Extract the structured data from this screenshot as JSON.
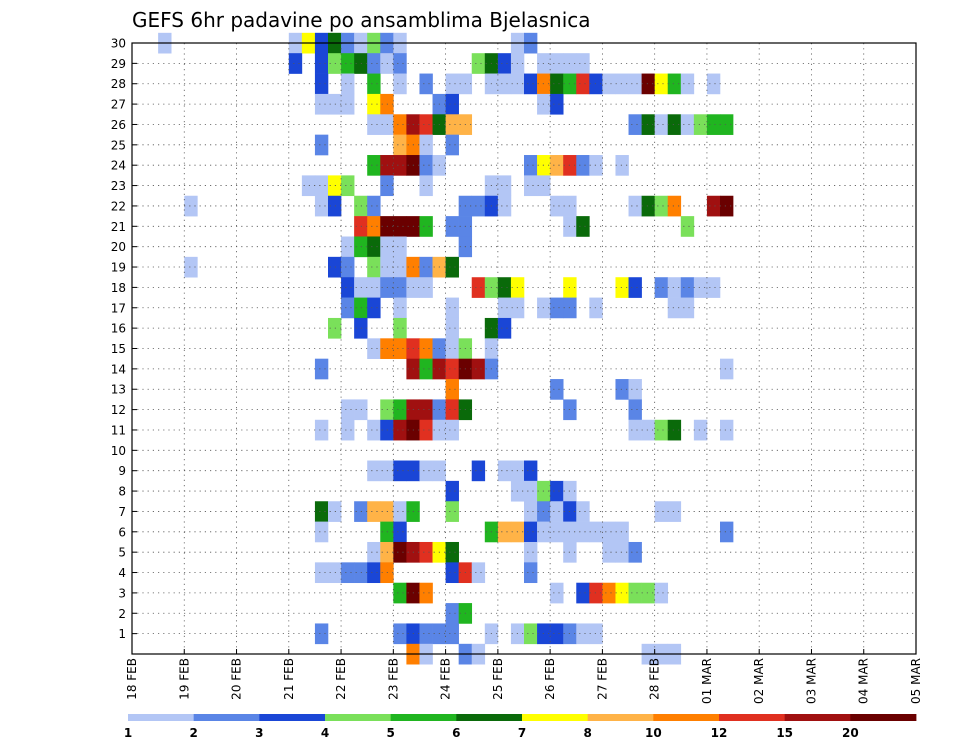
{
  "chart_data": {
    "type": "heatmap",
    "title": "GEFS 6hr padavine po ansamblima Bjelasnica",
    "y_ticks": [
      "1",
      "2",
      "3",
      "4",
      "5",
      "6",
      "7",
      "8",
      "9",
      "10",
      "11",
      "12",
      "13",
      "14",
      "15",
      "16",
      "17",
      "18",
      "19",
      "20",
      "21",
      "22",
      "23",
      "24",
      "25",
      "26",
      "27",
      "28",
      "29",
      "30"
    ],
    "x_ticks": [
      "18 FEB",
      "19 FEB",
      "20 FEB",
      "21 FEB",
      "22 FEB",
      "23 FEB",
      "24 FEB",
      "25 FEB",
      "26 FEB",
      "27 FEB",
      "28 FEB",
      "01 MAR",
      "02 MAR",
      "03 MAR",
      "04 MAR",
      "05 MAR"
    ],
    "ylim": [
      0,
      30
    ],
    "grid": true,
    "legend": {
      "placement": "bottom",
      "labels": [
        "1",
        "2",
        "3",
        "4",
        "5",
        "6",
        "7",
        "8",
        "10",
        "12",
        "15",
        "20"
      ],
      "colors": [
        "#b3c6f5",
        "#5a85e6",
        "#1a46d6",
        "#7ae05a",
        "#20b520",
        "#0a6a0a",
        "#ffff00",
        "#ffb347",
        "#ff7f00",
        "#e03020",
        "#a01010",
        "#6a0000"
      ]
    },
    "cells": [
      [
        30,
        2,
        1
      ],
      [
        30,
        12,
        1
      ],
      [
        30,
        13,
        7
      ],
      [
        30,
        14,
        3
      ],
      [
        30,
        15,
        6
      ],
      [
        30,
        16,
        2
      ],
      [
        30,
        17,
        1
      ],
      [
        30,
        18,
        4
      ],
      [
        30,
        19,
        2
      ],
      [
        30,
        20,
        1
      ],
      [
        30,
        29,
        1
      ],
      [
        30,
        30,
        2
      ],
      [
        29,
        12,
        3
      ],
      [
        29,
        14,
        3
      ],
      [
        29,
        15,
        4
      ],
      [
        29,
        16,
        5
      ],
      [
        29,
        17,
        6
      ],
      [
        29,
        18,
        2
      ],
      [
        29,
        19,
        1
      ],
      [
        29,
        20,
        2
      ],
      [
        29,
        26,
        4
      ],
      [
        29,
        27,
        6
      ],
      [
        29,
        28,
        3
      ],
      [
        29,
        29,
        1
      ],
      [
        29,
        31,
        1
      ],
      [
        29,
        32,
        1
      ],
      [
        29,
        33,
        1
      ],
      [
        29,
        34,
        1
      ],
      [
        28,
        14,
        3
      ],
      [
        28,
        16,
        1
      ],
      [
        28,
        18,
        5
      ],
      [
        28,
        20,
        1
      ],
      [
        28,
        22,
        2
      ],
      [
        28,
        24,
        1
      ],
      [
        28,
        25,
        1
      ],
      [
        28,
        27,
        1
      ],
      [
        28,
        28,
        1
      ],
      [
        28,
        29,
        1
      ],
      [
        28,
        30,
        3
      ],
      [
        28,
        31,
        10
      ],
      [
        28,
        32,
        6
      ],
      [
        28,
        33,
        5
      ],
      [
        28,
        34,
        12
      ],
      [
        28,
        35,
        3
      ],
      [
        28,
        36,
        1
      ],
      [
        28,
        37,
        1
      ],
      [
        28,
        38,
        1
      ],
      [
        28,
        39,
        20
      ],
      [
        28,
        40,
        7
      ],
      [
        28,
        41,
        5
      ],
      [
        28,
        42,
        1
      ],
      [
        28,
        44,
        1
      ],
      [
        27,
        14,
        1
      ],
      [
        27,
        15,
        1
      ],
      [
        27,
        16,
        1
      ],
      [
        27,
        18,
        7
      ],
      [
        27,
        19,
        10
      ],
      [
        27,
        23,
        2
      ],
      [
        27,
        24,
        3
      ],
      [
        27,
        31,
        1
      ],
      [
        27,
        32,
        3
      ],
      [
        26,
        18,
        1
      ],
      [
        26,
        19,
        1
      ],
      [
        26,
        20,
        10
      ],
      [
        26,
        21,
        15
      ],
      [
        26,
        22,
        12
      ],
      [
        26,
        23,
        6
      ],
      [
        26,
        24,
        8
      ],
      [
        26,
        25,
        8
      ],
      [
        26,
        38,
        2
      ],
      [
        26,
        39,
        6
      ],
      [
        26,
        40,
        1
      ],
      [
        26,
        41,
        6
      ],
      [
        26,
        42,
        1
      ],
      [
        26,
        43,
        4
      ],
      [
        26,
        44,
        5
      ],
      [
        26,
        45,
        5
      ],
      [
        25,
        14,
        2
      ],
      [
        25,
        20,
        8
      ],
      [
        25,
        21,
        10
      ],
      [
        25,
        22,
        1
      ],
      [
        25,
        24,
        2
      ],
      [
        24,
        18,
        5
      ],
      [
        24,
        19,
        15
      ],
      [
        24,
        20,
        15
      ],
      [
        24,
        21,
        20
      ],
      [
        24,
        22,
        2
      ],
      [
        24,
        23,
        1
      ],
      [
        24,
        30,
        2
      ],
      [
        24,
        31,
        7
      ],
      [
        24,
        32,
        8
      ],
      [
        24,
        33,
        12
      ],
      [
        24,
        34,
        2
      ],
      [
        24,
        35,
        1
      ],
      [
        24,
        37,
        1
      ],
      [
        23,
        13,
        1
      ],
      [
        23,
        14,
        1
      ],
      [
        23,
        15,
        7
      ],
      [
        23,
        16,
        4
      ],
      [
        23,
        19,
        2
      ],
      [
        23,
        22,
        1
      ],
      [
        23,
        27,
        1
      ],
      [
        23,
        28,
        1
      ],
      [
        23,
        30,
        1
      ],
      [
        23,
        31,
        1
      ],
      [
        22,
        4,
        1
      ],
      [
        22,
        14,
        1
      ],
      [
        22,
        15,
        3
      ],
      [
        22,
        17,
        4
      ],
      [
        22,
        18,
        2
      ],
      [
        22,
        25,
        2
      ],
      [
        22,
        26,
        2
      ],
      [
        22,
        27,
        3
      ],
      [
        22,
        28,
        1
      ],
      [
        22,
        32,
        1
      ],
      [
        22,
        33,
        1
      ],
      [
        22,
        38,
        1
      ],
      [
        22,
        39,
        6
      ],
      [
        22,
        40,
        4
      ],
      [
        22,
        41,
        10
      ],
      [
        22,
        44,
        15
      ],
      [
        22,
        45,
        20
      ],
      [
        21,
        17,
        12
      ],
      [
        21,
        18,
        10
      ],
      [
        21,
        19,
        20
      ],
      [
        21,
        20,
        20
      ],
      [
        21,
        21,
        20
      ],
      [
        21,
        22,
        5
      ],
      [
        21,
        24,
        2
      ],
      [
        21,
        25,
        2
      ],
      [
        21,
        33,
        1
      ],
      [
        21,
        34,
        6
      ],
      [
        21,
        42,
        4
      ],
      [
        20,
        16,
        1
      ],
      [
        20,
        17,
        5
      ],
      [
        20,
        18,
        6
      ],
      [
        20,
        19,
        1
      ],
      [
        20,
        20,
        1
      ],
      [
        20,
        25,
        2
      ],
      [
        19,
        4,
        1
      ],
      [
        19,
        15,
        3
      ],
      [
        19,
        16,
        2
      ],
      [
        19,
        18,
        4
      ],
      [
        19,
        19,
        1
      ],
      [
        19,
        20,
        1
      ],
      [
        19,
        21,
        10
      ],
      [
        19,
        22,
        2
      ],
      [
        19,
        23,
        8
      ],
      [
        19,
        24,
        6
      ],
      [
        18,
        16,
        3
      ],
      [
        18,
        17,
        1
      ],
      [
        18,
        18,
        1
      ],
      [
        18,
        19,
        2
      ],
      [
        18,
        20,
        2
      ],
      [
        18,
        21,
        1
      ],
      [
        18,
        22,
        1
      ],
      [
        18,
        26,
        12
      ],
      [
        18,
        27,
        4
      ],
      [
        18,
        28,
        6
      ],
      [
        18,
        29,
        7
      ],
      [
        18,
        33,
        7
      ],
      [
        18,
        37,
        7
      ],
      [
        18,
        38,
        3
      ],
      [
        18,
        40,
        2
      ],
      [
        18,
        41,
        1
      ],
      [
        18,
        42,
        2
      ],
      [
        18,
        43,
        1
      ],
      [
        18,
        44,
        1
      ],
      [
        17,
        16,
        2
      ],
      [
        17,
        17,
        5
      ],
      [
        17,
        18,
        3
      ],
      [
        17,
        20,
        1
      ],
      [
        17,
        24,
        1
      ],
      [
        17,
        28,
        1
      ],
      [
        17,
        29,
        1
      ],
      [
        17,
        31,
        1
      ],
      [
        17,
        32,
        2
      ],
      [
        17,
        33,
        2
      ],
      [
        17,
        35,
        1
      ],
      [
        17,
        41,
        1
      ],
      [
        17,
        42,
        1
      ],
      [
        16,
        15,
        4
      ],
      [
        16,
        17,
        3
      ],
      [
        16,
        20,
        4
      ],
      [
        16,
        24,
        1
      ],
      [
        16,
        27,
        6
      ],
      [
        16,
        28,
        3
      ],
      [
        15,
        18,
        1
      ],
      [
        15,
        19,
        10
      ],
      [
        15,
        20,
        10
      ],
      [
        15,
        21,
        12
      ],
      [
        15,
        22,
        10
      ],
      [
        15,
        23,
        2
      ],
      [
        15,
        24,
        1
      ],
      [
        15,
        25,
        4
      ],
      [
        15,
        27,
        1
      ],
      [
        14,
        14,
        2
      ],
      [
        14,
        21,
        15
      ],
      [
        14,
        22,
        5
      ],
      [
        14,
        23,
        15
      ],
      [
        14,
        24,
        12
      ],
      [
        14,
        25,
        20
      ],
      [
        14,
        26,
        15
      ],
      [
        14,
        27,
        2
      ],
      [
        14,
        45,
        1
      ],
      [
        13,
        24,
        10
      ],
      [
        13,
        32,
        2
      ],
      [
        13,
        37,
        2
      ],
      [
        13,
        38,
        1
      ],
      [
        12,
        16,
        1
      ],
      [
        12,
        17,
        1
      ],
      [
        12,
        19,
        4
      ],
      [
        12,
        20,
        5
      ],
      [
        12,
        21,
        15
      ],
      [
        12,
        22,
        15
      ],
      [
        12,
        23,
        2
      ],
      [
        12,
        24,
        12
      ],
      [
        12,
        25,
        6
      ],
      [
        12,
        33,
        2
      ],
      [
        12,
        38,
        2
      ],
      [
        11,
        14,
        1
      ],
      [
        11,
        16,
        1
      ],
      [
        11,
        18,
        1
      ],
      [
        11,
        19,
        3
      ],
      [
        11,
        20,
        15
      ],
      [
        11,
        21,
        20
      ],
      [
        11,
        22,
        12
      ],
      [
        11,
        23,
        1
      ],
      [
        11,
        24,
        1
      ],
      [
        11,
        38,
        1
      ],
      [
        11,
        39,
        1
      ],
      [
        11,
        40,
        4
      ],
      [
        11,
        41,
        6
      ],
      [
        11,
        43,
        1
      ],
      [
        11,
        45,
        1
      ],
      [
        9,
        18,
        1
      ],
      [
        9,
        19,
        1
      ],
      [
        9,
        20,
        3
      ],
      [
        9,
        21,
        3
      ],
      [
        9,
        22,
        1
      ],
      [
        9,
        23,
        1
      ],
      [
        9,
        26,
        3
      ],
      [
        9,
        28,
        1
      ],
      [
        9,
        29,
        1
      ],
      [
        9,
        30,
        3
      ],
      [
        8,
        24,
        3
      ],
      [
        8,
        29,
        1
      ],
      [
        8,
        30,
        1
      ],
      [
        8,
        31,
        4
      ],
      [
        8,
        32,
        3
      ],
      [
        8,
        33,
        1
      ],
      [
        7,
        14,
        6
      ],
      [
        7,
        15,
        1
      ],
      [
        7,
        17,
        2
      ],
      [
        7,
        18,
        8
      ],
      [
        7,
        19,
        8
      ],
      [
        7,
        20,
        1
      ],
      [
        7,
        21,
        5
      ],
      [
        7,
        24,
        4
      ],
      [
        7,
        30,
        1
      ],
      [
        7,
        31,
        2
      ],
      [
        7,
        32,
        1
      ],
      [
        7,
        33,
        3
      ],
      [
        7,
        34,
        1
      ],
      [
        7,
        40,
        1
      ],
      [
        7,
        41,
        1
      ],
      [
        6,
        14,
        1
      ],
      [
        6,
        19,
        5
      ],
      [
        6,
        20,
        3
      ],
      [
        6,
        27,
        5
      ],
      [
        6,
        28,
        8
      ],
      [
        6,
        29,
        8
      ],
      [
        6,
        30,
        3
      ],
      [
        6,
        31,
        1
      ],
      [
        6,
        32,
        1
      ],
      [
        6,
        33,
        1
      ],
      [
        6,
        34,
        1
      ],
      [
        6,
        35,
        1
      ],
      [
        6,
        36,
        1
      ],
      [
        6,
        37,
        1
      ],
      [
        6,
        45,
        2
      ],
      [
        5,
        18,
        1
      ],
      [
        5,
        19,
        8
      ],
      [
        5,
        20,
        20
      ],
      [
        5,
        21,
        15
      ],
      [
        5,
        22,
        12
      ],
      [
        5,
        23,
        7
      ],
      [
        5,
        24,
        6
      ],
      [
        5,
        30,
        1
      ],
      [
        5,
        33,
        1
      ],
      [
        5,
        36,
        1
      ],
      [
        5,
        37,
        1
      ],
      [
        5,
        38,
        2
      ],
      [
        4,
        14,
        1
      ],
      [
        4,
        15,
        1
      ],
      [
        4,
        16,
        2
      ],
      [
        4,
        17,
        2
      ],
      [
        4,
        18,
        3
      ],
      [
        4,
        19,
        10
      ],
      [
        4,
        24,
        3
      ],
      [
        4,
        25,
        12
      ],
      [
        4,
        26,
        1
      ],
      [
        4,
        30,
        2
      ],
      [
        3,
        20,
        5
      ],
      [
        3,
        21,
        20
      ],
      [
        3,
        22,
        10
      ],
      [
        3,
        32,
        1
      ],
      [
        3,
        34,
        3
      ],
      [
        3,
        35,
        12
      ],
      [
        3,
        36,
        10
      ],
      [
        3,
        37,
        7
      ],
      [
        3,
        38,
        4
      ],
      [
        3,
        39,
        4
      ],
      [
        3,
        40,
        1
      ],
      [
        2,
        24,
        2
      ],
      [
        2,
        25,
        5
      ],
      [
        1,
        14,
        2
      ],
      [
        1,
        20,
        2
      ],
      [
        1,
        21,
        3
      ],
      [
        1,
        22,
        2
      ],
      [
        1,
        23,
        2
      ],
      [
        1,
        24,
        2
      ],
      [
        1,
        27,
        1
      ],
      [
        1,
        29,
        1
      ],
      [
        1,
        30,
        4
      ],
      [
        1,
        31,
        3
      ],
      [
        1,
        32,
        3
      ],
      [
        1,
        33,
        2
      ],
      [
        1,
        34,
        1
      ],
      [
        1,
        35,
        1
      ],
      [
        0,
        21,
        10
      ],
      [
        0,
        22,
        1
      ],
      [
        0,
        25,
        2
      ],
      [
        0,
        26,
        1
      ],
      [
        0,
        39,
        1
      ],
      [
        0,
        40,
        1
      ],
      [
        0,
        41,
        1
      ]
    ]
  }
}
